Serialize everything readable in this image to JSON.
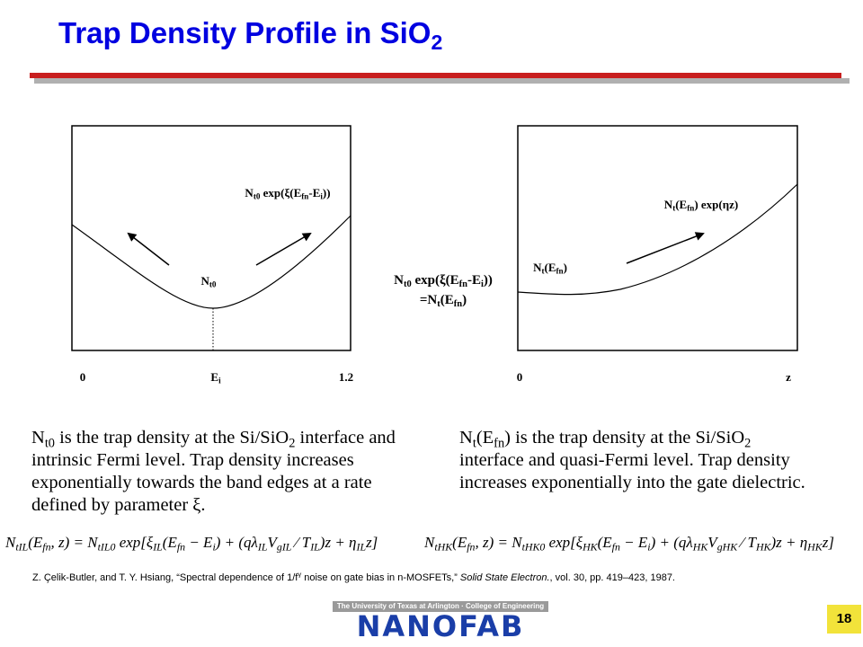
{
  "header": {
    "title": [
      "Trap Density Profile in SiO",
      "2"
    ]
  },
  "left_plot": {
    "curve_label": [
      "N",
      "t0",
      " exp(ξ(E",
      "fn",
      "-E",
      "i",
      "))"
    ],
    "min_label": [
      "N",
      "t0"
    ],
    "x_labels": {
      "start": "0",
      "mid": [
        "E",
        "i"
      ],
      "end": "1.2"
    }
  },
  "middle_label": {
    "line1": [
      "N",
      "t0",
      " exp(ξ(E",
      "fn",
      "-E",
      "i",
      "))"
    ],
    "line2": [
      "=N",
      "t",
      "(E",
      "fn",
      ")"
    ]
  },
  "right_plot": {
    "curve_label": [
      "N",
      "t",
      "(E",
      "fn",
      ") exp(ηz)"
    ],
    "start_label": [
      "N",
      "t",
      "(E",
      "fn",
      ")"
    ],
    "x_labels": {
      "start": "0",
      "end": "z"
    }
  },
  "paragraphs": [
    [
      "N",
      "t0",
      " is the trap density at the Si/SiO",
      "2",
      " interface and intrinsic Fermi level. Trap density increases exponentially towards the band edges at a rate defined by parameter ξ."
    ],
    [
      "N",
      "t",
      "(E",
      "fn",
      ") is the trap density at the Si/SiO",
      "2",
      " interface and quasi-Fermi level. Trap density increases exponentially into the gate dielectric."
    ]
  ],
  "equations": [
    [
      "N",
      "tIL",
      "(E",
      "fn",
      ", z) = N",
      "tIL0",
      " exp[ξ",
      "IL",
      "(E",
      "fn",
      " − E",
      "i",
      ") + (qλ",
      "IL",
      "V",
      "gIL",
      " ⁄ T",
      "IL",
      ")z + η",
      "IL",
      "z]"
    ],
    [
      "N",
      "tHK",
      "(E",
      "fn",
      ", z) = N",
      "tHK0",
      " exp[ξ",
      "HK",
      "(E",
      "fn",
      " − E",
      "i",
      ") + (qλ",
      "HK",
      "V",
      "gHK",
      " ⁄ T",
      "HK",
      ")z + η",
      "HK",
      "z]"
    ]
  ],
  "citation": {
    "authors": "Z. Çelik-Butler,  and T.  Y. Hsiang, “Spectral dependence of 1/f",
    "exponent": "γ",
    "title_rest": " noise on gate bias in n-MOSFETs,”  ",
    "journal": "Solid State Electron.",
    "details": ", vol. 30, pp. 419–423,  1987."
  },
  "logo": {
    "band": "The University of Texas at Arlington · College of Engineering",
    "name": "NANOFAB"
  },
  "page_number": "18"
}
